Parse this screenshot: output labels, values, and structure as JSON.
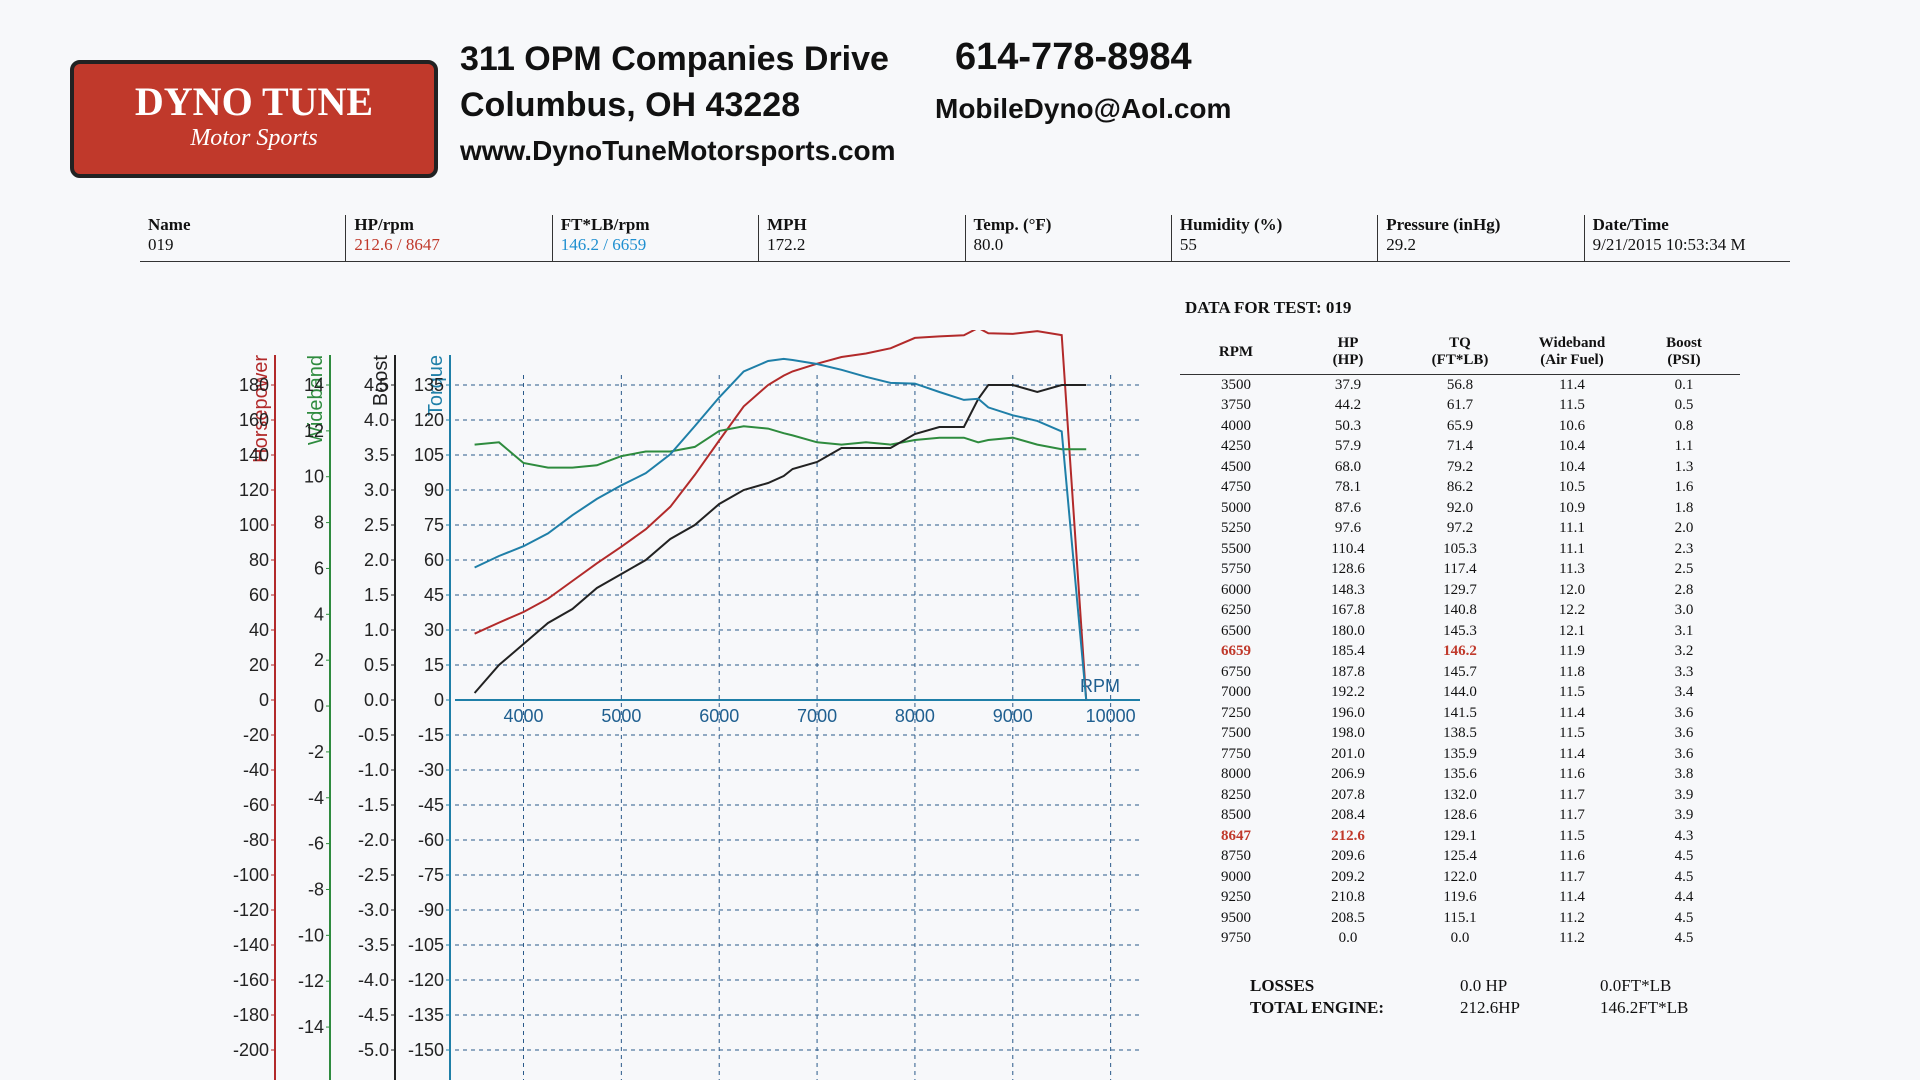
{
  "header": {
    "logo_line1": "DYNO TUNE",
    "logo_line2": "Motor Sports",
    "address_line1": "311 OPM Companies Drive",
    "address_line2": "Columbus, OH  43228",
    "website": "www.DynoTuneMotorsports.com",
    "phone": "614-778-8984",
    "email": "MobileDyno@Aol.com"
  },
  "info": [
    {
      "label": "Name",
      "value": "019"
    },
    {
      "label": "HP/rpm",
      "value": "212.6 / 8647"
    },
    {
      "label": "FT*LB/rpm",
      "value": "146.2 / 6659"
    },
    {
      "label": "MPH",
      "value": "172.2"
    },
    {
      "label": "Temp. (°F)",
      "value": "80.0"
    },
    {
      "label": "Humidity (%)",
      "value": "55"
    },
    {
      "label": "Pressure (inHg)",
      "value": "29.2"
    },
    {
      "label": "Date/Time",
      "value": "9/21/2015 10:53:34 M"
    }
  ],
  "chart": {
    "x_label": "RPM",
    "xlim": [
      3300,
      10300
    ],
    "xticks": [
      4000,
      5000,
      6000,
      7000,
      8000,
      9000,
      10000
    ],
    "axes": [
      {
        "label": "Horsepower",
        "color": "#b22a2a",
        "lim": [
          -200,
          180
        ],
        "ticks": [
          180,
          160,
          140,
          120,
          100,
          80,
          60,
          40,
          20,
          0,
          -20,
          -40,
          -60,
          -80,
          -100,
          -120,
          -140,
          -160,
          -180,
          -200
        ]
      },
      {
        "label": "Wideband",
        "color": "#2e8b3e",
        "lim": [
          -15,
          14
        ],
        "ticks": [
          14,
          12,
          10,
          8,
          6,
          4,
          2,
          0,
          -2,
          -4,
          -6,
          -8,
          -10,
          -12,
          -14
        ]
      },
      {
        "label": "Boost",
        "color": "#222222",
        "lim": [
          -5,
          4.5
        ],
        "ticks": [
          4.5,
          {
            "value": 4,
            "label": "4.0"
          },
          3.5,
          {
            "value": 3,
            "label": "3.0"
          },
          2.5,
          {
            "value": 2,
            "label": "2.0"
          },
          1.5,
          {
            "value": 1,
            "label": "1.0"
          },
          0.5,
          {
            "value": 0,
            "label": "0.0"
          },
          -0.5,
          {
            "value": -1,
            "label": "-1.0"
          },
          -1.5,
          {
            "value": -2,
            "label": "-2.0"
          },
          -2.5,
          {
            "value": -3,
            "label": "-3.0"
          },
          -3.5,
          {
            "value": -4,
            "label": "-4.0"
          },
          -4.5,
          {
            "value": -5,
            "label": "-5.0"
          }
        ]
      },
      {
        "label": "Torque",
        "color": "#1f7fa8",
        "lim": [
          -150,
          135
        ],
        "ticks": [
          135,
          120,
          105,
          90,
          75,
          60,
          45,
          30,
          15,
          0,
          -15,
          -30,
          -45,
          -60,
          -75,
          -90,
          -105,
          -120,
          -135,
          -150
        ]
      }
    ]
  },
  "test_title": "DATA FOR TEST: 019",
  "table": {
    "headers": [
      [
        "RPM"
      ],
      [
        "HP",
        "(HP)"
      ],
      [
        "TQ",
        "(FT*LB)"
      ],
      [
        "Wideband",
        "(Air Fuel)"
      ],
      [
        "Boost",
        "(PSI)"
      ]
    ],
    "rows": [
      [
        "3500",
        "37.9",
        "56.8",
        "11.4",
        "0.1"
      ],
      [
        "3750",
        "44.2",
        "61.7",
        "11.5",
        "0.5"
      ],
      [
        "4000",
        "50.3",
        "65.9",
        "10.6",
        "0.8"
      ],
      [
        "4250",
        "57.9",
        "71.4",
        "10.4",
        "1.1"
      ],
      [
        "4500",
        "68.0",
        "79.2",
        "10.4",
        "1.3"
      ],
      [
        "4750",
        "78.1",
        "86.2",
        "10.5",
        "1.6"
      ],
      [
        "5000",
        "87.6",
        "92.0",
        "10.9",
        "1.8"
      ],
      [
        "5250",
        "97.6",
        "97.2",
        "11.1",
        "2.0"
      ],
      [
        "5500",
        "110.4",
        "105.3",
        "11.1",
        "2.3"
      ],
      [
        "5750",
        "128.6",
        "117.4",
        "11.3",
        "2.5"
      ],
      [
        "6000",
        "148.3",
        "129.7",
        "12.0",
        "2.8"
      ],
      [
        "6250",
        "167.8",
        "140.8",
        "12.2",
        "3.0"
      ],
      [
        "6500",
        "180.0",
        "145.3",
        "12.1",
        "3.1"
      ],
      [
        "6659",
        "185.4",
        "146.2",
        "11.9",
        "3.2"
      ],
      [
        "6750",
        "187.8",
        "145.7",
        "11.8",
        "3.3"
      ],
      [
        "7000",
        "192.2",
        "144.0",
        "11.5",
        "3.4"
      ],
      [
        "7250",
        "196.0",
        "141.5",
        "11.4",
        "3.6"
      ],
      [
        "7500",
        "198.0",
        "138.5",
        "11.5",
        "3.6"
      ],
      [
        "7750",
        "201.0",
        "135.9",
        "11.4",
        "3.6"
      ],
      [
        "8000",
        "206.9",
        "135.6",
        "11.6",
        "3.8"
      ],
      [
        "8250",
        "207.8",
        "132.0",
        "11.7",
        "3.9"
      ],
      [
        "8500",
        "208.4",
        "128.6",
        "11.7",
        "3.9"
      ],
      [
        "8647",
        "212.6",
        "129.1",
        "11.5",
        "4.3"
      ],
      [
        "8750",
        "209.6",
        "125.4",
        "11.6",
        "4.5"
      ],
      [
        "9000",
        "209.2",
        "122.0",
        "11.7",
        "4.5"
      ],
      [
        "9250",
        "210.8",
        "119.6",
        "11.4",
        "4.4"
      ],
      [
        "9500",
        "208.5",
        "115.1",
        "11.2",
        "4.5"
      ],
      [
        "9750",
        "0.0",
        "0.0",
        "11.2",
        "4.5"
      ]
    ]
  },
  "losses": {
    "label": "LOSSES",
    "hp": "0.0 HP",
    "tq": "0.0FT*LB"
  },
  "total": {
    "label": "TOTAL ENGINE:",
    "hp": "212.6HP",
    "tq": "146.2FT*LB"
  }
}
